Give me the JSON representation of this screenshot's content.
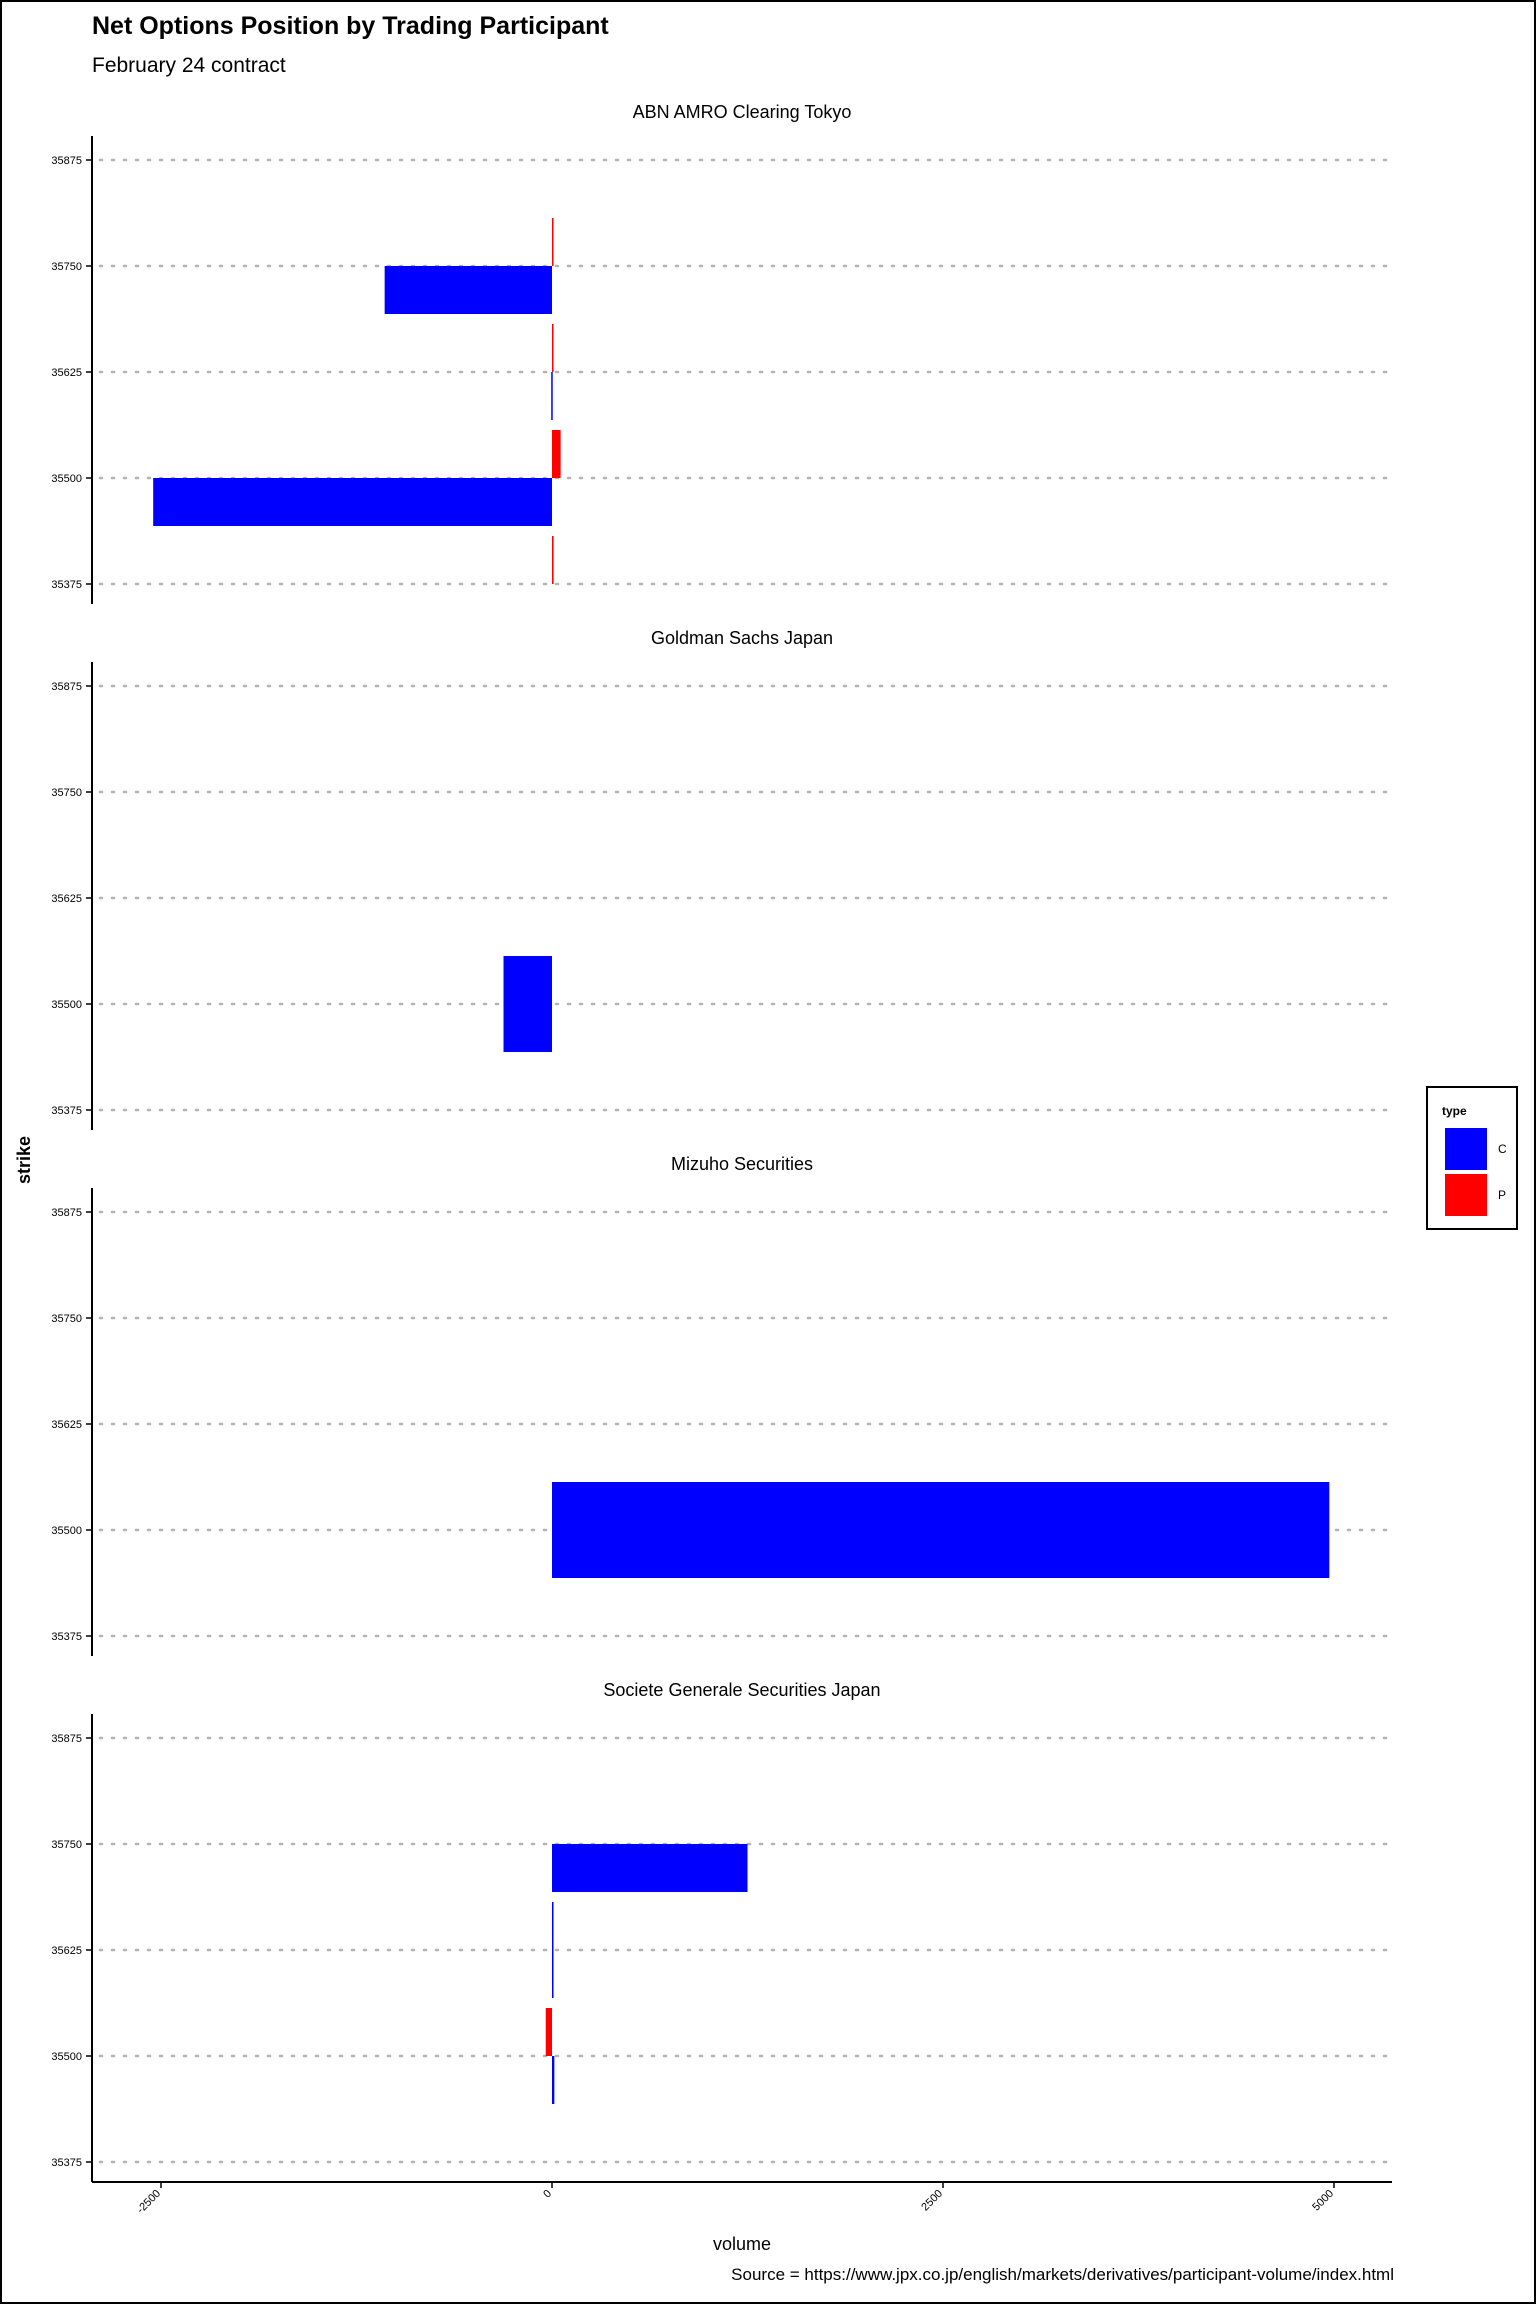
{
  "title": "Net Options Position by Trading Participant",
  "subtitle": "February 24 contract",
  "source": "Source = https://www.jpx.co.jp/english/markets/derivatives/participant-volume/index.html",
  "chart_data": {
    "type": "bar",
    "orientation": "horizontal",
    "xlabel": "volume",
    "ylabel": "strike",
    "xlim": [
      -2900,
      5300
    ],
    "ylim": [
      35375,
      35875
    ],
    "x_ticks": [
      -2500,
      0,
      2500,
      5000
    ],
    "x_tick_labels": [
      "-2500",
      "0",
      "2500",
      "5000"
    ],
    "y_ticks": [
      35375,
      35500,
      35625,
      35750,
      35875
    ],
    "y_tick_labels": [
      "35375",
      "35500",
      "35625",
      "35750",
      "35875"
    ],
    "grid": "horizontal dotted",
    "legend": {
      "title": "type",
      "placement": "right",
      "items": [
        {
          "label": "C",
          "color": "#0000ff"
        },
        {
          "label": "P",
          "color": "#ff0000"
        }
      ]
    },
    "colors": {
      "C": "#0000ff",
      "P": "#ff0000"
    },
    "panels": [
      {
        "name": "ABN AMRO Clearing Tokyo",
        "bars": [
          {
            "strike": 35500,
            "type": "C",
            "volume": -2550
          },
          {
            "strike": 35500,
            "type": "P",
            "volume": 55
          },
          {
            "strike": 35375,
            "type": "P",
            "volume": 10
          },
          {
            "strike": 35625,
            "type": "P",
            "volume": 5
          },
          {
            "strike": 35625,
            "type": "C",
            "volume": -5
          },
          {
            "strike": 35750,
            "type": "C",
            "volume": -1070
          },
          {
            "strike": 35750,
            "type": "P",
            "volume": 5
          }
        ]
      },
      {
        "name": "Goldman Sachs Japan",
        "bars": [
          {
            "strike": 35500,
            "type": "C",
            "volume": -310,
            "span": "both"
          }
        ]
      },
      {
        "name": "Mizuho Securities",
        "bars": [
          {
            "strike": 35500,
            "type": "C",
            "volume": 4970,
            "span": "both"
          }
        ]
      },
      {
        "name": "Societe Generale Securities Japan",
        "bars": [
          {
            "strike": 35750,
            "type": "C",
            "volume": 1250
          },
          {
            "strike": 35625,
            "type": "C",
            "volume": 5,
            "span": "both"
          },
          {
            "strike": 35500,
            "type": "P",
            "volume": -40
          },
          {
            "strike": 35500,
            "type": "C",
            "volume": 15
          }
        ]
      }
    ]
  }
}
